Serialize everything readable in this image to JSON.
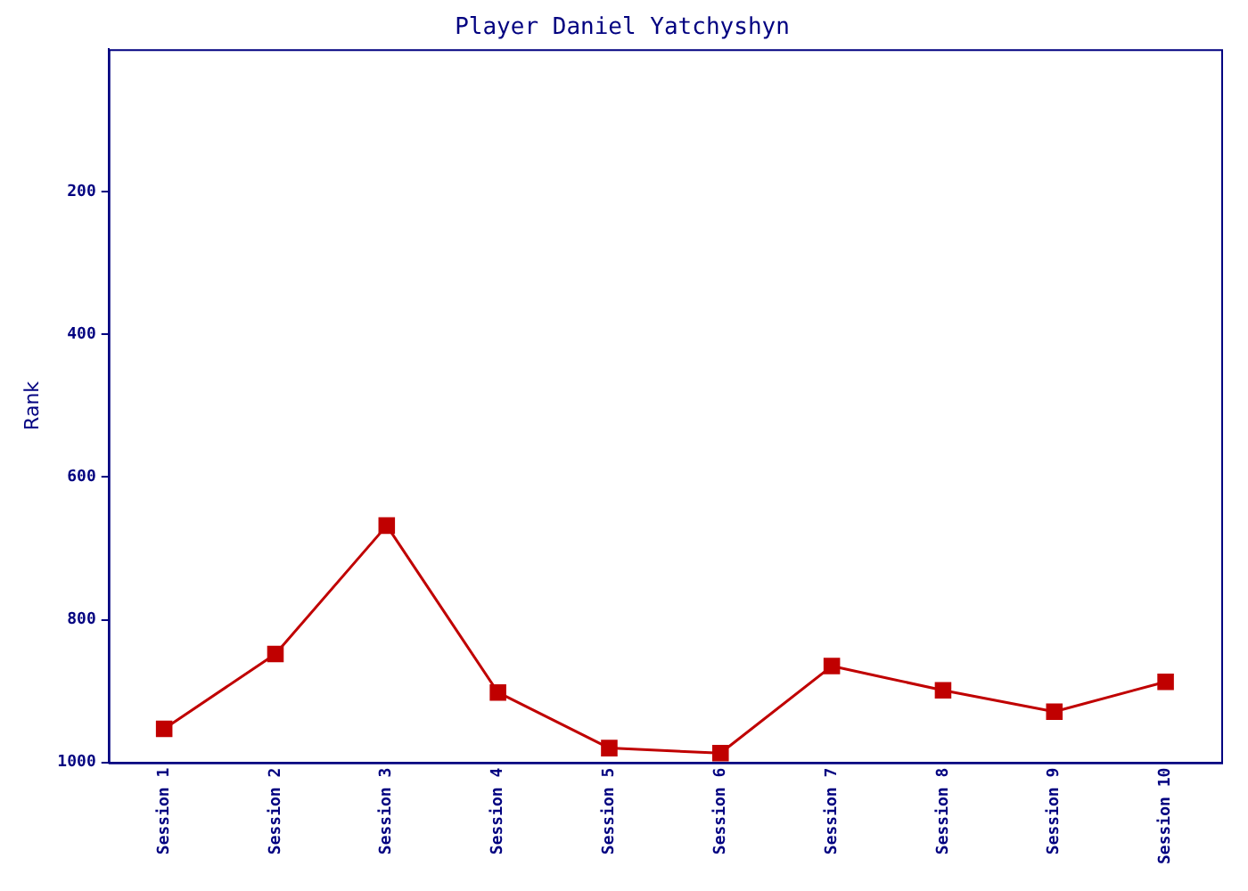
{
  "chart_data": {
    "type": "line",
    "title": "Player Daniel Yatchyshyn",
    "ylabel": "Rank",
    "categories": [
      "Session 1",
      "Session 2",
      "Session 3",
      "Session 4",
      "Session 5",
      "Session 6",
      "Session 7",
      "Session 8",
      "Session 9",
      "Session 10"
    ],
    "series": [
      {
        "color": "#c00000",
        "values": [
          953,
          848,
          668,
          902,
          980,
          987,
          865,
          899,
          929,
          887
        ]
      }
    ],
    "ylim": [
      1000,
      0
    ],
    "yticks": [
      200,
      400,
      600,
      800,
      1000
    ],
    "grid": false,
    "legend": false,
    "marker": "square",
    "line_style": "solid"
  }
}
